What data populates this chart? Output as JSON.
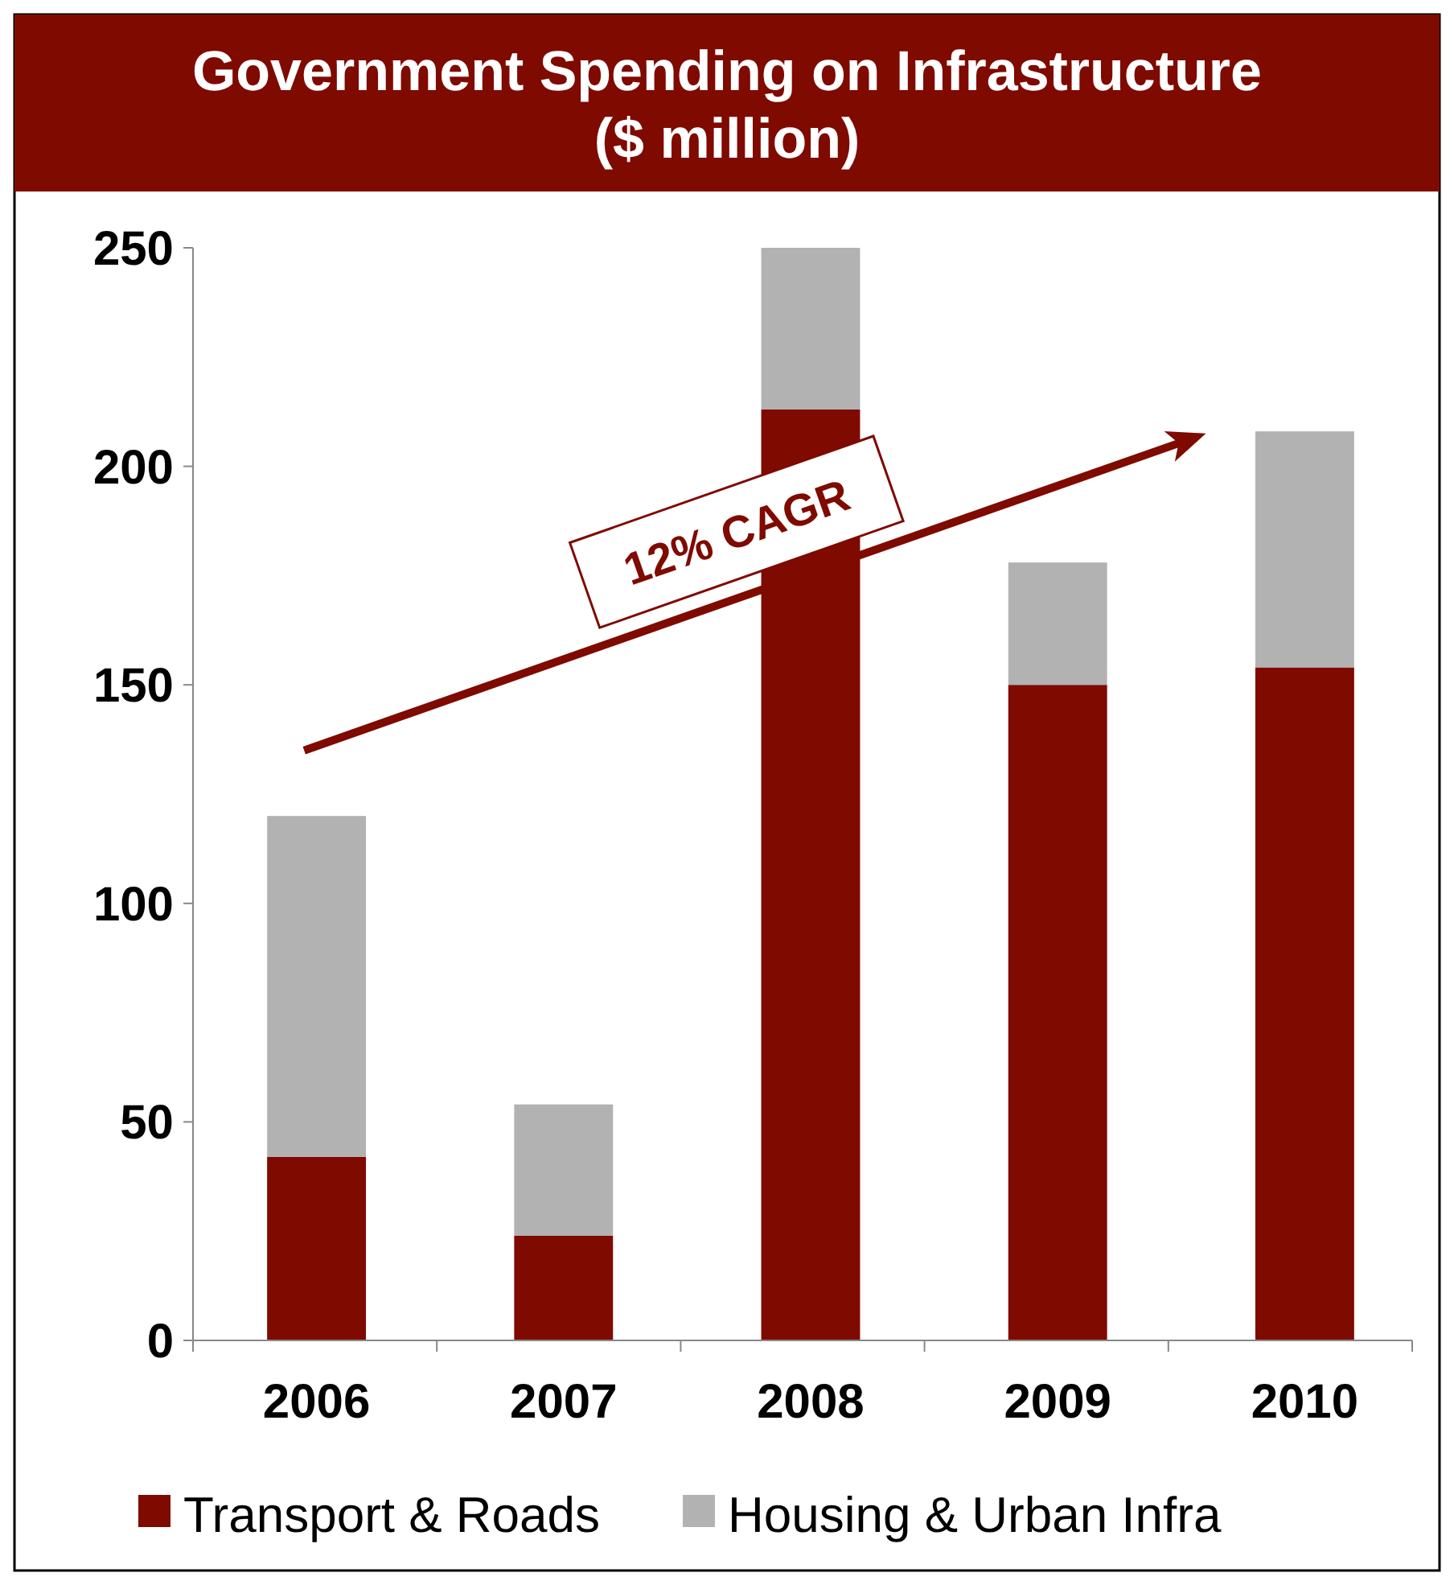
{
  "chart_data": {
    "type": "bar",
    "title": "Government Spending on Infrastructure ($ million)",
    "categories": [
      "2006",
      "2007",
      "2008",
      "2009",
      "2010"
    ],
    "stacked": true,
    "series": [
      {
        "name": "Transport & Roads",
        "color": "#7f0a00",
        "values": [
          42,
          24,
          213,
          150,
          154
        ]
      },
      {
        "name": "Housing & Urban Infra",
        "color": "#b2b2b2",
        "values": [
          78,
          30,
          37,
          28,
          54
        ]
      }
    ],
    "ylim": [
      0,
      250
    ],
    "yticks": [
      0,
      50,
      100,
      150,
      200,
      250
    ],
    "grid": false,
    "legend": "bottom",
    "annotations": [
      "12% CAGR"
    ]
  }
}
